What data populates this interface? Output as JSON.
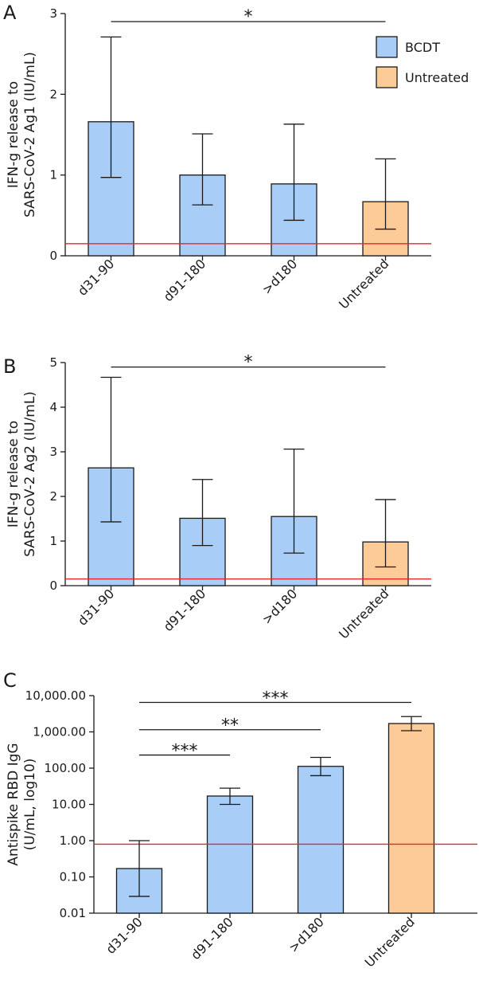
{
  "colors": {
    "bcdt": "#a8cdf6",
    "untreated": "#fccb98",
    "threshold": "#e8262b",
    "stroke": "#1a1a1a"
  },
  "legend": [
    {
      "label": "BCDT",
      "series": "bcdt"
    },
    {
      "label": "Untreated",
      "series": "untreated"
    }
  ],
  "chart_data": [
    {
      "panel": "A",
      "type": "bar",
      "scale": "linear",
      "ylabel_lines": [
        "IFN-g release to",
        "SARS-CoV-2 Ag1 (IU/mL)"
      ],
      "ylim": [
        0,
        3
      ],
      "yticks": [
        0,
        1,
        2,
        3
      ],
      "ytick_labels": [
        "0",
        "1",
        "2",
        "3"
      ],
      "categories": [
        "d31-90",
        "d91-180",
        ">d180",
        "Untreated"
      ],
      "groups": [
        "bcdt",
        "bcdt",
        "bcdt",
        "untreated"
      ],
      "values": [
        1.66,
        1.0,
        0.89,
        0.67
      ],
      "err_low": [
        0.97,
        0.63,
        0.44,
        0.33
      ],
      "err_high": [
        2.71,
        1.51,
        1.63,
        1.2
      ],
      "threshold": 0.15,
      "significance": [
        {
          "from": 0,
          "to": 3,
          "label": "*",
          "y": 2.9
        }
      ],
      "legend_visible": true
    },
    {
      "panel": "B",
      "type": "bar",
      "scale": "linear",
      "ylabel_lines": [
        "IFN-g release to",
        "SARS-CoV-2 Ag2 (IU/mL)"
      ],
      "ylim": [
        0,
        5
      ],
      "yticks": [
        0,
        1,
        2,
        3,
        4,
        5
      ],
      "ytick_labels": [
        "0",
        "1",
        "2",
        "3",
        "4",
        "5"
      ],
      "categories": [
        "d31-90",
        "d91-180",
        ">d180",
        "Untreated"
      ],
      "groups": [
        "bcdt",
        "bcdt",
        "bcdt",
        "untreated"
      ],
      "values": [
        2.64,
        1.51,
        1.55,
        0.98
      ],
      "err_low": [
        1.43,
        0.9,
        0.73,
        0.42
      ],
      "err_high": [
        4.67,
        2.38,
        3.06,
        1.93
      ],
      "threshold": 0.15,
      "significance": [
        {
          "from": 0,
          "to": 3,
          "label": "*",
          "y": 4.9
        }
      ],
      "legend_visible": false
    },
    {
      "panel": "C",
      "type": "bar",
      "scale": "log10",
      "ylabel_lines": [
        "Antispike RBD IgG",
        "(U/mL, log10)"
      ],
      "ylim": [
        0.01,
        10000
      ],
      "yticks": [
        0.01,
        0.1,
        1,
        10,
        100,
        1000,
        10000
      ],
      "ytick_labels": [
        "0.01",
        "0.10",
        "1.00",
        "10.00",
        "100.00",
        "1,000.00",
        "10,000.00"
      ],
      "categories": [
        "d31-90",
        "d91-180",
        ">d180",
        "Untreated"
      ],
      "groups": [
        "bcdt",
        "bcdt",
        "bcdt",
        "untreated"
      ],
      "values": [
        0.17,
        17,
        112,
        1700
      ],
      "err_low": [
        0.029,
        10,
        62,
        1080
      ],
      "err_high": [
        1.0,
        28,
        198,
        2650
      ],
      "threshold": 0.8,
      "significance": [
        {
          "from": 0,
          "to": 3,
          "label": "***",
          "y": 6500
        },
        {
          "from": 0,
          "to": 2,
          "label": "**",
          "y": 1150
        },
        {
          "from": 0,
          "to": 1,
          "label": "***",
          "y": 230
        }
      ],
      "legend_visible": false
    }
  ]
}
